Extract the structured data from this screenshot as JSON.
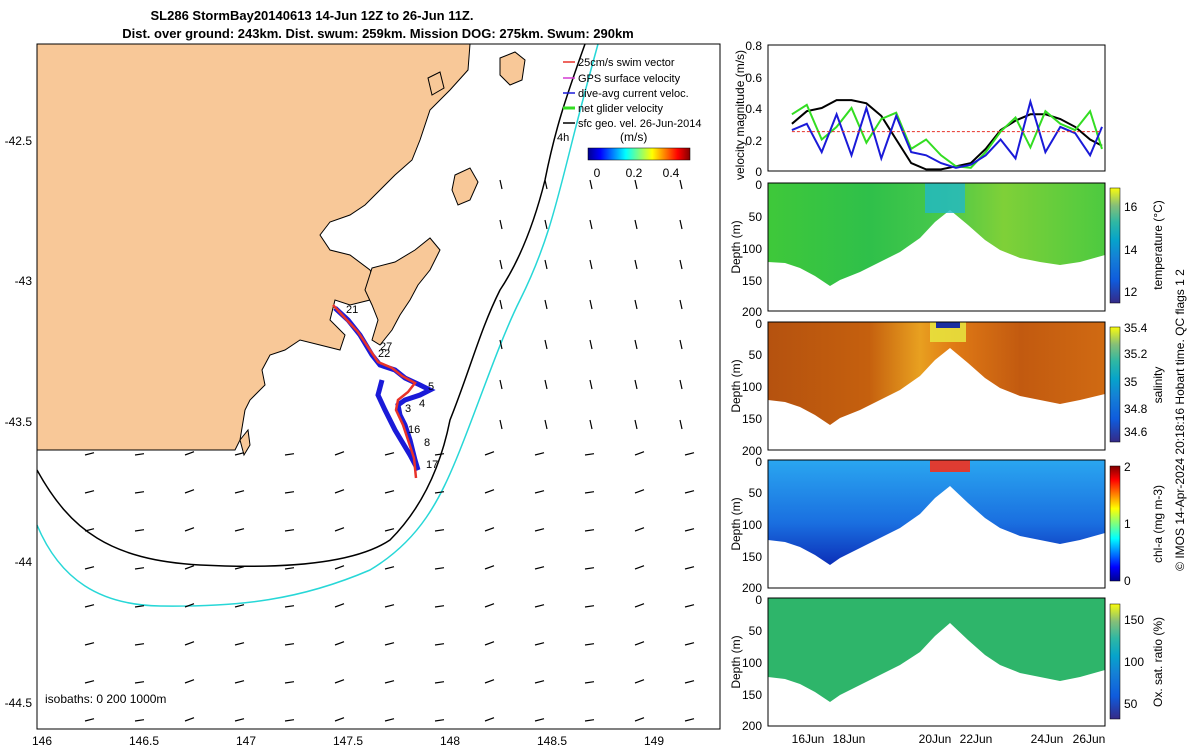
{
  "title": {
    "line1": "SL286 StormBay20140613 14-Jun 12Z to 26-Jun 11Z.",
    "line2": "Dist. over ground: 243km. Dist. swum: 259km. Mission DOG: 275km. Swum: 290km"
  },
  "map": {
    "x_ticks": [
      "146",
      "146.5",
      "147",
      "147.5",
      "148",
      "148.5",
      "149"
    ],
    "y_ticks": [
      "-42.5",
      "-43",
      "-43.5",
      "-44",
      "-44.5"
    ],
    "isobaths_label": "isobaths: 0   200  1000m",
    "legend": [
      {
        "label": "25cm/s swim vector",
        "color": "#e8332a"
      },
      {
        "label": "GPS surface velocity",
        "color": "#d23ad2"
      },
      {
        "label": "dive-avg current veloc.",
        "color": "#1a1ad8"
      },
      {
        "label": "net glider velocity",
        "color": "#33dd22"
      },
      {
        "label": "sfc geo. vel. 26-Jun-2014",
        "color": "#000000"
      }
    ],
    "colorbar_unit": "(m/s)",
    "colorbar_ticks": [
      "0",
      "0.2",
      "0.4"
    ],
    "corner_label": "4h",
    "track_labels": [
      "21",
      "27",
      "22",
      "5",
      "4",
      "16",
      "8",
      "17",
      "3"
    ]
  },
  "chart_data": [
    {
      "type": "line",
      "ylabel": "velocity magnitude (m/s)",
      "ylim": [
        0,
        0.8
      ],
      "yticks": [
        "0",
        "0.2",
        "0.4",
        "0.6",
        "0.8"
      ],
      "x_days": [
        15.8,
        16.3,
        16.8,
        17.3,
        17.8,
        18.3,
        18.8,
        19.3,
        19.8,
        20.3,
        20.8,
        21.3,
        21.8,
        22.3,
        22.8,
        23.3,
        23.8,
        24.3,
        24.8,
        25.3,
        25.8,
        26.2
      ],
      "series": [
        {
          "name": "",
          "color": "#000000",
          "values": [
            0.3,
            0.38,
            0.4,
            0.45,
            0.45,
            0.43,
            0.35,
            0.2,
            0.05,
            0.01,
            0.01,
            0.03,
            0.05,
            0.14,
            0.26,
            0.32,
            0.36,
            0.36,
            0.33,
            0.28,
            0.2,
            0.16
          ]
        },
        {
          "name": "",
          "color": "#33dd22",
          "values": [
            0.36,
            0.42,
            0.2,
            0.28,
            0.4,
            0.18,
            0.33,
            0.37,
            0.14,
            0.2,
            0.1,
            0.03,
            0.02,
            0.12,
            0.25,
            0.34,
            0.15,
            0.38,
            0.3,
            0.26,
            0.38,
            0.14
          ]
        },
        {
          "name": "",
          "color": "#1a1ad8",
          "values": [
            0.26,
            0.3,
            0.12,
            0.36,
            0.1,
            0.4,
            0.08,
            0.35,
            0.12,
            0.1,
            0.05,
            0.02,
            0.04,
            0.1,
            0.2,
            0.08,
            0.44,
            0.12,
            0.28,
            0.24,
            0.1,
            0.28
          ]
        },
        {
          "name": "",
          "color": "#e8332a",
          "values": [
            0.25,
            0.25,
            0.25,
            0.25,
            0.25,
            0.25,
            0.25,
            0.25,
            0.25,
            0.25,
            0.25,
            0.25,
            0.25,
            0.25,
            0.25,
            0.25,
            0.25,
            0.25,
            0.25,
            0.25,
            0.25,
            0.25
          ]
        }
      ]
    },
    {
      "type": "heatmap",
      "ylabel": "Depth (m)",
      "yticks": [
        "0",
        "50",
        "100",
        "150",
        "200"
      ],
      "colorbar_label": "temperature (°C)",
      "colorbar_ticks": [
        "12",
        "14",
        "16"
      ]
    },
    {
      "type": "heatmap",
      "ylabel": "Depth (m)",
      "yticks": [
        "0",
        "50",
        "100",
        "150",
        "200"
      ],
      "colorbar_label": "salinity",
      "colorbar_ticks": [
        "34.6",
        "34.8",
        "35",
        "35.2",
        "35.4"
      ]
    },
    {
      "type": "heatmap",
      "ylabel": "Depth (m)",
      "yticks": [
        "0",
        "50",
        "100",
        "150",
        "200"
      ],
      "colorbar_label": "chl-a (mg m-3)",
      "colorbar_ticks": [
        "0",
        "1",
        "2"
      ]
    },
    {
      "type": "heatmap",
      "ylabel": "Depth (m)",
      "yticks": [
        "0",
        "50",
        "100",
        "150",
        "200"
      ],
      "colorbar_label": "Ox. sat. ratio (%)",
      "colorbar_ticks": [
        "50",
        "100",
        "150"
      ],
      "xticks": [
        "16Jun",
        "18Jun",
        "20Jun",
        "22Jun",
        "24Jun",
        "26Jun"
      ]
    }
  ],
  "footer": {
    "side_text": "© IMOS 14-Apr-2024 20:18:16 Hobart time. QC flags 1  2"
  }
}
